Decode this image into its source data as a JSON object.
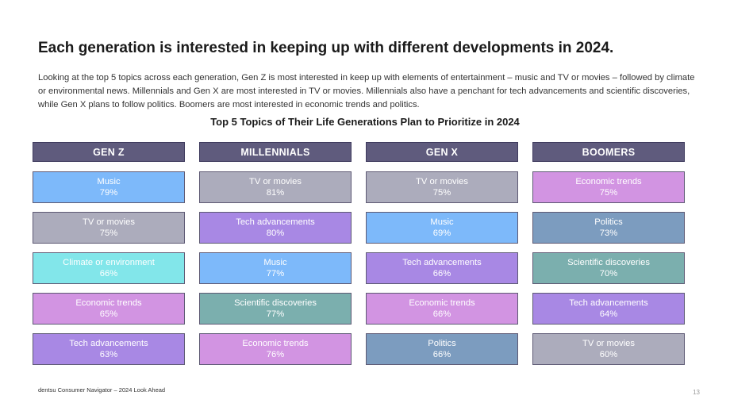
{
  "title": "Each generation is interested in keeping up with different developments in 2024.",
  "description": "Looking at the top 5 topics across each generation, Gen Z is most interested in keep up with elements of entertainment – music and TV or movies – followed by climate or environmental news. Millennials and Gen X are most interested in TV or movies. Millennials also have a penchant for tech advancements and scientific discoveries, while Gen X plans to follow politics. Boomers are most interested in economic trends and politics.",
  "footer": "dentsu Consumer Navigator –  2024 Look Ahead",
  "page_number": "13",
  "colors": {
    "header": "#5f5b7d",
    "Music": "#7db9fa",
    "TV or movies": "#acacbc",
    "Tech advancements": "#a888e4",
    "Climate or environment": "#82e6ea",
    "Economic trends": "#d294e2",
    "Scientific discoveries": "#7bafae",
    "Politics": "#7c9cbf"
  },
  "chart_data": {
    "type": "table",
    "title": "Top 5 Topics of Their Life Generations Plan to Prioritize in 2024",
    "unit": "%",
    "columns": [
      {
        "header": "GEN Z",
        "items": [
          {
            "topic": "Music",
            "value": 79
          },
          {
            "topic": "TV or movies",
            "value": 75
          },
          {
            "topic": "Climate or environment",
            "value": 66
          },
          {
            "topic": "Economic trends",
            "value": 65
          },
          {
            "topic": "Tech advancements",
            "value": 63
          }
        ]
      },
      {
        "header": "MILLENNIALS",
        "items": [
          {
            "topic": "TV or movies",
            "value": 81
          },
          {
            "topic": "Tech advancements",
            "value": 80
          },
          {
            "topic": "Music",
            "value": 77
          },
          {
            "topic": "Scientific discoveries",
            "value": 77
          },
          {
            "topic": "Economic trends",
            "value": 76
          }
        ]
      },
      {
        "header": "GEN X",
        "items": [
          {
            "topic": "TV or movies",
            "value": 75
          },
          {
            "topic": "Music",
            "value": 69
          },
          {
            "topic": "Tech advancements",
            "value": 66
          },
          {
            "topic": "Economic trends",
            "value": 66
          },
          {
            "topic": "Politics",
            "value": 66
          }
        ]
      },
      {
        "header": "BOOMERS",
        "items": [
          {
            "topic": "Economic trends",
            "value": 75
          },
          {
            "topic": "Politics",
            "value": 73
          },
          {
            "topic": "Scientific discoveries",
            "value": 70
          },
          {
            "topic": "Tech advancements",
            "value": 64
          },
          {
            "topic": "TV or movies",
            "value": 60
          }
        ]
      }
    ]
  }
}
